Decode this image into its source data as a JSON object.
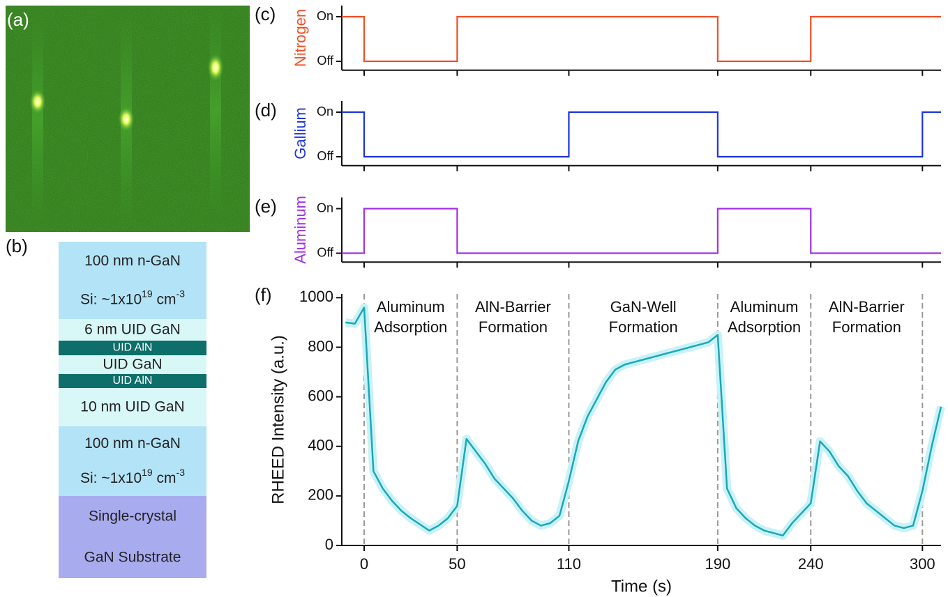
{
  "figure": {
    "image_label": "(a)",
    "stack": {
      "label": "(b)",
      "layers": [
        {
          "lines": [
            [
              "100 nm n-GaN"
            ],
            [
              "Si: ~1x10",
              "19",
              " cm",
              "-3"
            ]
          ]
        },
        {
          "lines": [
            [
              "6 nm UID GaN"
            ]
          ]
        },
        {
          "lines": [
            [
              "UID AlN"
            ]
          ]
        },
        {
          "lines": [
            [
              "UID GaN"
            ]
          ]
        },
        {
          "lines": [
            [
              "UID AlN"
            ]
          ]
        },
        {
          "lines": [
            [
              "10 nm UID GaN"
            ]
          ]
        },
        {
          "lines": [
            [
              "100 nm n-GaN"
            ],
            [
              "Si: ~1x10",
              "19",
              " cm",
              "-3"
            ]
          ]
        },
        {
          "lines": [
            [
              "Single-crystal"
            ],
            [
              "GaN Substrate"
            ]
          ]
        }
      ]
    }
  },
  "chart_data": [
    {
      "type": "step",
      "panel_label": "(c)",
      "ylabel": "Nitrogen",
      "color": "#f04e23",
      "x": [
        -12,
        0,
        0,
        50,
        50,
        190,
        190,
        240,
        240,
        310
      ],
      "values": [
        1,
        1,
        0,
        0,
        1,
        1,
        0,
        0,
        1,
        1
      ],
      "xlim": [
        -12,
        310
      ],
      "xticks": [
        0,
        50,
        110,
        190,
        240,
        300
      ],
      "ylim": [
        -0.2,
        1.25
      ],
      "yticks": [
        {
          "value": 1,
          "label": "On"
        },
        {
          "value": 0,
          "label": "Off"
        }
      ]
    },
    {
      "type": "step",
      "panel_label": "(d)",
      "ylabel": "Gallium",
      "color": "#1b33e0",
      "x": [
        -12,
        0,
        0,
        110,
        110,
        190,
        190,
        300,
        300,
        310
      ],
      "values": [
        1,
        1,
        0,
        0,
        1,
        1,
        0,
        0,
        1,
        1
      ],
      "xlim": [
        -12,
        310
      ],
      "xticks": [
        0,
        50,
        110,
        190,
        240,
        300
      ],
      "ylim": [
        -0.2,
        1.25
      ],
      "yticks": [
        {
          "value": 1,
          "label": "On"
        },
        {
          "value": 0,
          "label": "Off"
        }
      ]
    },
    {
      "type": "step",
      "panel_label": "(e)",
      "ylabel": "Aluminum",
      "color": "#a030e8",
      "x": [
        -12,
        0,
        0,
        50,
        50,
        190,
        190,
        240,
        240,
        310
      ],
      "values": [
        0,
        0,
        1,
        1,
        0,
        0,
        1,
        1,
        0,
        0
      ],
      "xlim": [
        -12,
        310
      ],
      "xticks": [
        0,
        50,
        110,
        190,
        240,
        300
      ],
      "ylim": [
        -0.2,
        1.25
      ],
      "yticks": [
        {
          "value": 1,
          "label": "On"
        },
        {
          "value": 0,
          "label": "Off"
        }
      ]
    },
    {
      "type": "line",
      "panel_label": "(f)",
      "ylabel": "RHEED Intensity (a.u.)",
      "xlabel": "Time (s)",
      "color": "#1aa8b8",
      "x": [
        -10,
        -5,
        0,
        5,
        10,
        15,
        20,
        25,
        30,
        35,
        40,
        45,
        50,
        55,
        60,
        65,
        70,
        75,
        80,
        85,
        90,
        95,
        100,
        105,
        110,
        115,
        120,
        125,
        130,
        135,
        140,
        145,
        150,
        155,
        160,
        165,
        170,
        175,
        180,
        185,
        190,
        195,
        200,
        205,
        210,
        215,
        220,
        225,
        230,
        235,
        240,
        245,
        250,
        255,
        260,
        265,
        270,
        275,
        280,
        285,
        290,
        295,
        300,
        305,
        310
      ],
      "values": [
        900,
        895,
        960,
        300,
        230,
        180,
        140,
        110,
        85,
        60,
        80,
        110,
        160,
        430,
        380,
        330,
        270,
        230,
        190,
        140,
        100,
        80,
        90,
        120,
        260,
        420,
        520,
        590,
        660,
        710,
        730,
        740,
        750,
        760,
        770,
        780,
        790,
        800,
        810,
        820,
        850,
        230,
        150,
        110,
        80,
        60,
        50,
        40,
        90,
        130,
        170,
        420,
        380,
        320,
        280,
        220,
        170,
        140,
        110,
        80,
        70,
        80,
        220,
        400,
        560
      ],
      "xlim": [
        -12,
        310
      ],
      "xticks": [
        0,
        50,
        110,
        190,
        240,
        300
      ],
      "ylim": [
        0,
        1015
      ],
      "yticks": [
        0,
        200,
        400,
        600,
        800,
        1000
      ],
      "annotations": [
        [
          "Aluminum",
          "Adsorption"
        ],
        [
          "AlN-Barrier",
          "Formation"
        ],
        [
          "GaN-Well",
          "Formation"
        ],
        [
          "Aluminum",
          "Adsorption"
        ],
        [
          "AlN-Barrier",
          "Formation"
        ]
      ]
    }
  ]
}
